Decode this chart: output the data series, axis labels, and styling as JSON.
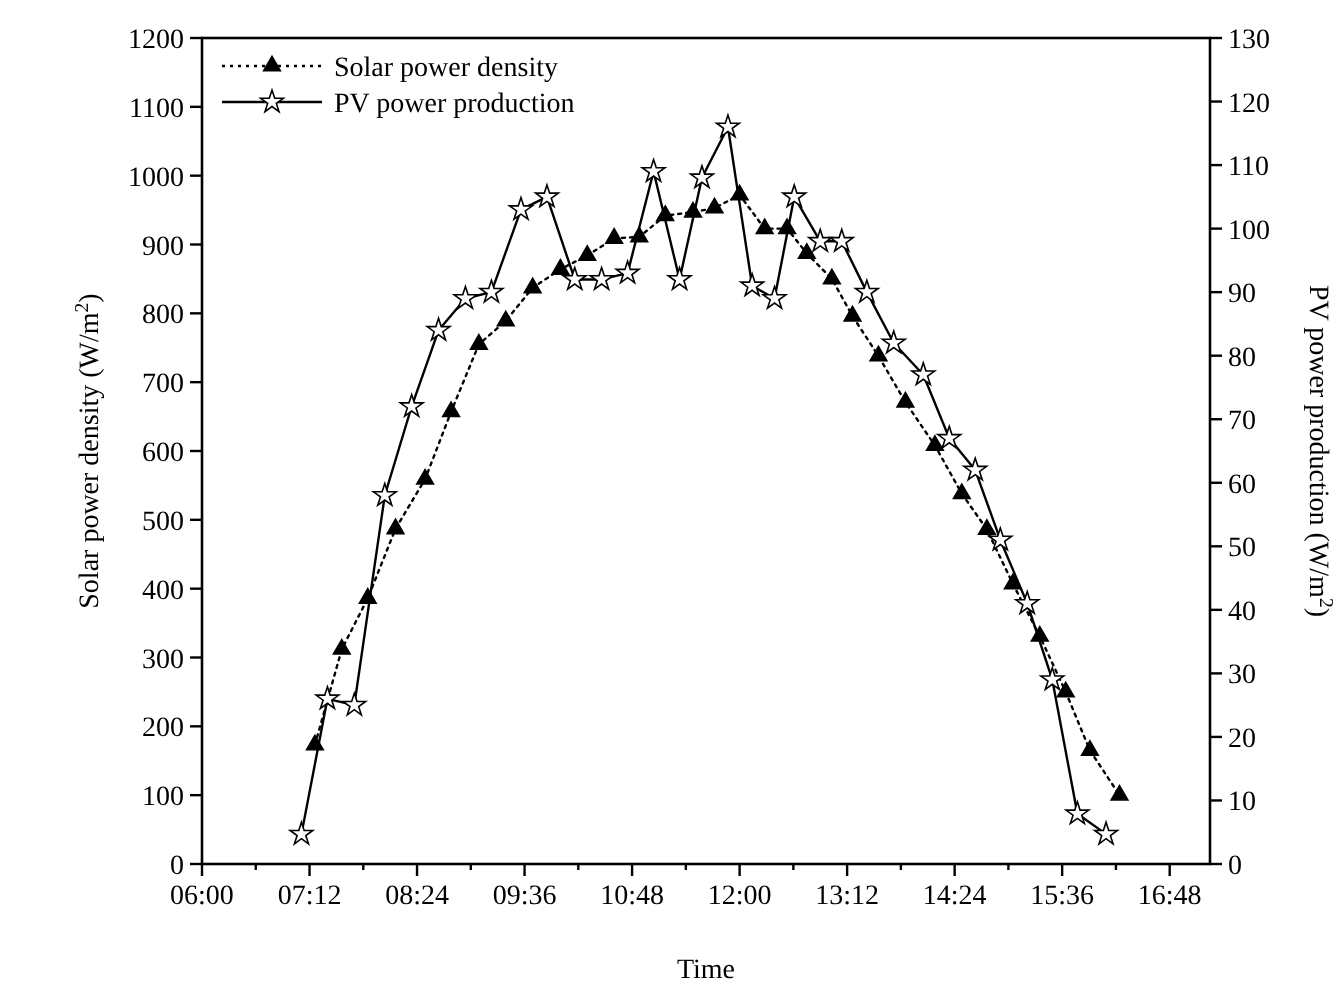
{
  "chart_data": {
    "type": "line",
    "xlabel": "Time",
    "ylabel": "Solar power density (W/m$^{2}$)",
    "y2label": "PV power production (W/m$^{2}$)",
    "xlim": [
      6,
      17.25
    ],
    "xticks": [
      {
        "value": 6,
        "label": "06:00"
      },
      {
        "value": 6.6,
        "label": null
      },
      {
        "value": 7.2,
        "label": "07:12"
      },
      {
        "value": 7.8,
        "label": null
      },
      {
        "value": 8.4,
        "label": "08:24"
      },
      {
        "value": 9,
        "label": null
      },
      {
        "value": 9.6,
        "label": "09:36"
      },
      {
        "value": 10.2,
        "label": null
      },
      {
        "value": 10.8,
        "label": "10:48"
      },
      {
        "value": 11.4,
        "label": null
      },
      {
        "value": 12,
        "label": "12:00"
      },
      {
        "value": 12.6,
        "label": null
      },
      {
        "value": 13.2,
        "label": "13:12"
      },
      {
        "value": 13.8,
        "label": null
      },
      {
        "value": 14.4,
        "label": "14:24"
      },
      {
        "value": 15,
        "label": null
      },
      {
        "value": 15.6,
        "label": "15:36"
      },
      {
        "value": 16.2,
        "label": null
      },
      {
        "value": 16.8,
        "label": "16:48"
      }
    ],
    "ylim": [
      0,
      1200
    ],
    "yticks": [
      0,
      100,
      200,
      300,
      400,
      500,
      600,
      700,
      800,
      900,
      1000,
      1100,
      1200
    ],
    "y2lim": [
      0,
      130
    ],
    "y2ticks": [
      0,
      10,
      20,
      30,
      40,
      50,
      60,
      70,
      80,
      90,
      100,
      110,
      120,
      130
    ],
    "legend": "top left",
    "grid": false,
    "series": [
      {
        "name": "Solar power density",
        "color": "#000000",
        "marker": "triangle",
        "line_style": "dotted",
        "x": [
          7.26,
          7.56,
          7.85,
          8.16,
          8.49,
          8.78,
          9.09,
          9.39,
          9.69,
          10.0,
          10.3,
          10.6,
          10.88,
          11.17,
          11.48,
          11.72,
          12.0,
          12.28,
          12.53,
          12.75,
          13.03,
          13.26,
          13.55,
          13.85,
          14.18,
          14.48,
          14.76,
          15.05,
          15.35,
          15.64,
          15.91,
          16.24
        ],
        "values": [
          173,
          312,
          386,
          487,
          559,
          657,
          755,
          789,
          837,
          864,
          884,
          909,
          911,
          942,
          947,
          953,
          972,
          923,
          923,
          887,
          850,
          796,
          738,
          671,
          608,
          538,
          486,
          407,
          331,
          250,
          165,
          100
        ]
      },
      {
        "name": "PV power production",
        "color": "#000000",
        "marker": "star",
        "line_style": "solid",
        "axis": "y2",
        "x": [
          7.11,
          7.4,
          7.7,
          8.04,
          8.34,
          8.64,
          8.94,
          9.23,
          9.56,
          9.85,
          10.16,
          10.46,
          10.75,
          11.04,
          11.33,
          11.58,
          11.87,
          12.14,
          12.39,
          12.61,
          12.9,
          13.14,
          13.42,
          13.72,
          14.05,
          14.34,
          14.63,
          14.91,
          15.21,
          15.49,
          15.77,
          16.09
        ],
        "values": [
          4.7,
          26,
          25,
          58,
          72,
          84,
          89,
          90,
          103,
          105,
          92,
          92,
          93,
          109,
          92,
          108,
          116,
          91,
          89,
          105,
          98,
          98,
          90,
          82,
          77,
          67,
          62,
          51,
          41,
          29,
          7.9,
          4.7
        ]
      }
    ]
  }
}
